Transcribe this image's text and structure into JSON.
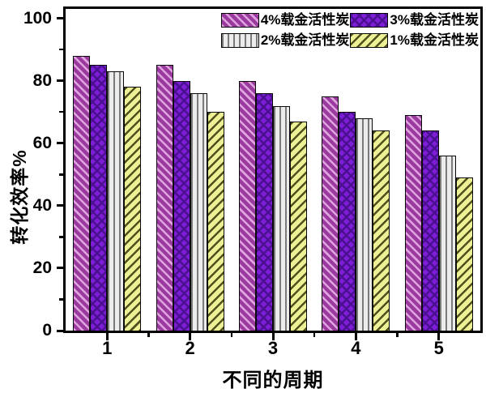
{
  "chart_data": {
    "type": "bar",
    "title": "",
    "xlabel": "不同的周期",
    "ylabel": "转化效率%",
    "categories": [
      "1",
      "2",
      "3",
      "4",
      "5"
    ],
    "series": [
      {
        "name": "4%载金活性炭",
        "pattern": "diag-back",
        "base_color": "#9a3a9e",
        "stripe_color": "#dfa3df",
        "values": [
          88,
          85,
          80,
          75,
          69
        ]
      },
      {
        "name": "3%载金活性炭",
        "pattern": "crosshatch",
        "base_color": "#7d1ed6",
        "stripe_color": "#4a1090",
        "values": [
          85,
          80,
          76,
          70,
          64
        ]
      },
      {
        "name": "2%载金活性炭",
        "pattern": "vertical",
        "base_color": "#ececec",
        "stripe_color": "#7a7a7a",
        "values": [
          83,
          76,
          72,
          68,
          56
        ]
      },
      {
        "name": "1%载金活性炭",
        "pattern": "diag-forward",
        "base_color": "#eef096",
        "stripe_color": "#50501e",
        "values": [
          78,
          70,
          67,
          64,
          49
        ]
      }
    ],
    "ylim": [
      0,
      100
    ],
    "yticks": [
      0,
      20,
      40,
      60,
      80,
      100
    ],
    "y_minor_ticks": [
      10,
      30,
      50,
      70,
      90
    ],
    "x_axis_has_minor_ticks": true,
    "legend_position": "top-right-inside",
    "grid": false,
    "axis_color": "#000000",
    "background_color": "#ffffff"
  }
}
